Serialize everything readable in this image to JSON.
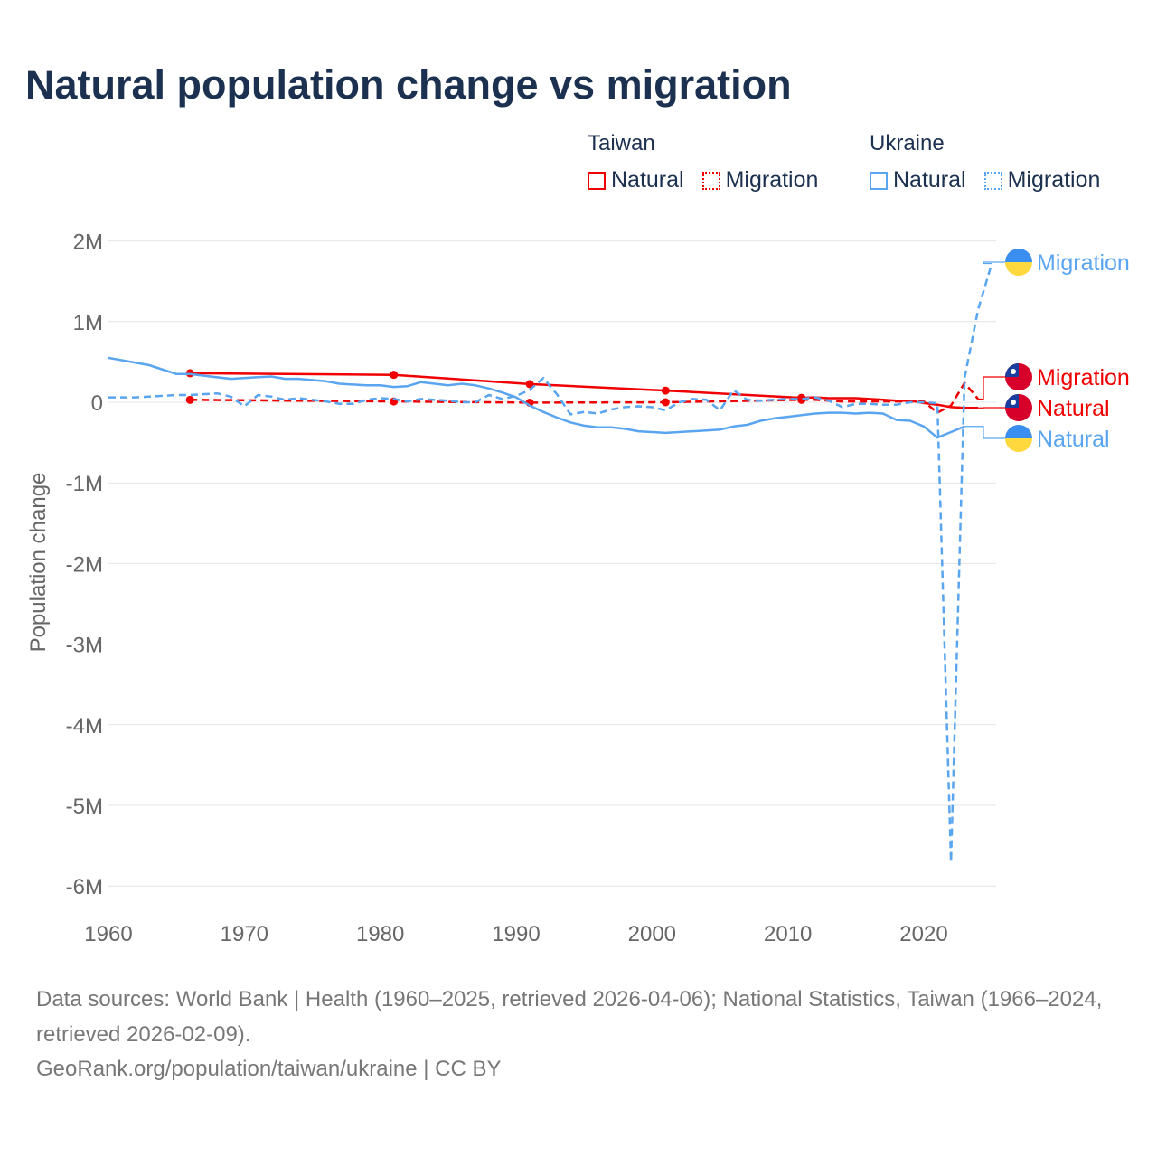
{
  "title": "Natural population change vs migration",
  "legend": {
    "groups": [
      {
        "name": "Taiwan",
        "items": [
          {
            "label": "Natural",
            "style": "solid"
          },
          {
            "label": "Migration",
            "style": "dotted"
          }
        ],
        "color": "#f00000"
      },
      {
        "name": "Ukraine",
        "items": [
          {
            "label": "Natural",
            "style": "solid"
          },
          {
            "label": "Migration",
            "style": "dotted"
          }
        ],
        "color": "#5aa5ef"
      }
    ]
  },
  "footer": {
    "sources": "Data sources: World Bank | Health (1960–2025, retrieved 2026-04-06); National Statistics, Taiwan (1966–2024, retrieved 2026-02-09).",
    "link": "GeoRank.org/population/taiwan/ukraine | CC BY"
  },
  "chart_data": {
    "type": "line",
    "title": "Natural population change vs migration",
    "xlabel": "",
    "ylabel": "Population change",
    "xlim": [
      1960,
      2025
    ],
    "ylim": [
      -6000000,
      2000000
    ],
    "x_ticks": [
      "1960",
      "1970",
      "1980",
      "1990",
      "2000",
      "2010",
      "2020"
    ],
    "y_ticks": [
      {
        "v": 2000000,
        "label": "2M"
      },
      {
        "v": 1000000,
        "label": "1M"
      },
      {
        "v": 0,
        "label": "0"
      },
      {
        "v": -1000000,
        "label": "-1M"
      },
      {
        "v": -2000000,
        "label": "-2M"
      },
      {
        "v": -3000000,
        "label": "-3M"
      },
      {
        "v": -4000000,
        "label": "-4M"
      },
      {
        "v": -5000000,
        "label": "-5M"
      },
      {
        "v": -6000000,
        "label": "-6M"
      }
    ],
    "grid": true,
    "series": [
      {
        "name": "Taiwan Natural",
        "end_label": "Natural",
        "country": "Taiwan",
        "color": "#f00000",
        "dash": "solid",
        "x": [
          1966,
          1981,
          1991,
          2001,
          2011,
          2012,
          2013,
          2014,
          2015,
          2016,
          2017,
          2018,
          2019,
          2020,
          2021,
          2022,
          2023,
          2024
        ],
        "y": [
          360000,
          340000,
          225000,
          145000,
          55000,
          60000,
          50000,
          50000,
          50000,
          40000,
          30000,
          20000,
          20000,
          -10000,
          -30000,
          -60000,
          -70000,
          -70000
        ]
      },
      {
        "name": "Taiwan Migration",
        "end_label": "Migration",
        "country": "Taiwan",
        "color": "#f00000",
        "dash": "dashed",
        "x": [
          1966,
          1981,
          1991,
          2001,
          2011,
          2012,
          2013,
          2014,
          2015,
          2016,
          2017,
          2018,
          2019,
          2020,
          2021,
          2022,
          2023,
          2024
        ],
        "y": [
          30000,
          10000,
          -5000,
          0,
          30000,
          30000,
          20000,
          10000,
          10000,
          10000,
          10000,
          10000,
          10000,
          10000,
          -130000,
          -40000,
          240000,
          40000
        ]
      },
      {
        "name": "Ukraine Natural",
        "end_label": "Natural",
        "country": "Ukraine",
        "color": "#5aa5ef",
        "dash": "solid",
        "x": [
          1960,
          1963,
          1965,
          1966,
          1967,
          1969,
          1971,
          1972,
          1973,
          1974,
          1976,
          1977,
          1979,
          1980,
          1981,
          1982,
          1983,
          1984,
          1985,
          1986,
          1987,
          1988,
          1989,
          1990,
          1991,
          1992,
          1993,
          1994,
          1995,
          1996,
          1997,
          1998,
          1999,
          2000,
          2001,
          2002,
          2003,
          2004,
          2005,
          2006,
          2007,
          2008,
          2009,
          2010,
          2011,
          2012,
          2013,
          2014,
          2015,
          2016,
          2017,
          2018,
          2019,
          2020,
          2021,
          2022,
          2023
        ],
        "y": [
          550000,
          460000,
          350000,
          350000,
          330000,
          290000,
          310000,
          320000,
          290000,
          290000,
          260000,
          230000,
          210000,
          210000,
          190000,
          200000,
          250000,
          230000,
          210000,
          230000,
          210000,
          170000,
          120000,
          60000,
          -40000,
          -120000,
          -190000,
          -250000,
          -290000,
          -310000,
          -310000,
          -330000,
          -360000,
          -370000,
          -380000,
          -370000,
          -360000,
          -350000,
          -340000,
          -300000,
          -280000,
          -230000,
          -200000,
          -180000,
          -160000,
          -140000,
          -130000,
          -130000,
          -140000,
          -130000,
          -140000,
          -220000,
          -230000,
          -300000,
          -440000,
          -370000,
          -300000
        ]
      },
      {
        "name": "Ukraine Migration",
        "end_label": "Migration",
        "country": "Ukraine",
        "color": "#5aa5ef",
        "dash": "dashed",
        "x": [
          1960,
          1962,
          1965,
          1966,
          1968,
          1969,
          1970,
          1971,
          1972,
          1973,
          1974,
          1976,
          1977,
          1978,
          1979,
          1980,
          1981,
          1982,
          1983,
          1985,
          1986,
          1987,
          1988,
          1989,
          1990,
          1991,
          1992,
          1993,
          1994,
          1995,
          1996,
          1997,
          1998,
          1999,
          2000,
          2001,
          2002,
          2003,
          2004,
          2005,
          2006,
          2007,
          2008,
          2009,
          2010,
          2011,
          2012,
          2013,
          2014,
          2015,
          2016,
          2017,
          2018,
          2019,
          2020,
          2021,
          2022,
          2023,
          2024,
          2025
        ],
        "y": [
          60000,
          60000,
          90000,
          90000,
          110000,
          70000,
          -50000,
          90000,
          70000,
          30000,
          50000,
          10000,
          -20000,
          -20000,
          30000,
          50000,
          40000,
          10000,
          40000,
          20000,
          0,
          0,
          90000,
          40000,
          80000,
          150000,
          300000,
          100000,
          -150000,
          -120000,
          -140000,
          -90000,
          -60000,
          -50000,
          -60000,
          -100000,
          0,
          40000,
          30000,
          -100000,
          150000,
          30000,
          20000,
          30000,
          40000,
          40000,
          60000,
          20000,
          -60000,
          -20000,
          -20000,
          -30000,
          -30000,
          0,
          0,
          -10000,
          -5700000,
          300000,
          1150000,
          1720000
        ]
      }
    ]
  }
}
